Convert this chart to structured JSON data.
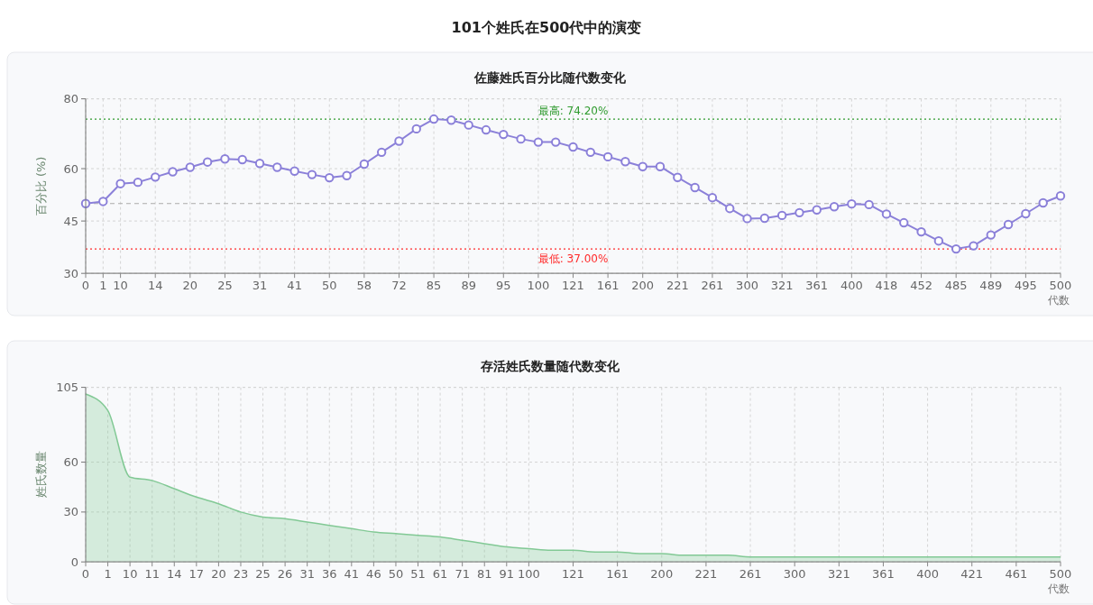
{
  "chart_data": [
    {
      "type": "line",
      "title": "101个姓氏在500代中的演变",
      "subtitle": "佐藤姓氏百分比随代数变化",
      "ylabel": "百分比 (%)",
      "xlabel": "代数",
      "categories": [
        "0",
        "1",
        "10",
        null,
        "14",
        null,
        "20",
        null,
        "25",
        null,
        "31",
        null,
        "41",
        null,
        "50",
        null,
        "58",
        null,
        "72",
        null,
        "85",
        null,
        "89",
        null,
        "95",
        null,
        "100",
        null,
        "121",
        null,
        "161",
        null,
        "200",
        null,
        "221",
        null,
        "261",
        null,
        "300",
        null,
        "321",
        null,
        "361",
        null,
        "400",
        null,
        "418",
        null,
        "452",
        null,
        "485",
        null,
        "489",
        null,
        "495",
        null,
        "500"
      ],
      "series": [
        {
          "color": "#8b80d9",
          "values": [
            50.0,
            50.6,
            55.7,
            56.1,
            57.6,
            59.1,
            60.4,
            61.9,
            62.8,
            62.6,
            61.5,
            60.4,
            59.3,
            58.3,
            57.4,
            58.0,
            61.3,
            64.7,
            67.9,
            71.4,
            74.2,
            73.9,
            72.5,
            71.1,
            69.8,
            68.5,
            67.6,
            67.6,
            66.2,
            64.7,
            63.4,
            62.0,
            60.6,
            60.6,
            57.5,
            54.6,
            51.7,
            48.6,
            45.7,
            45.8,
            46.6,
            47.4,
            48.2,
            49.1,
            49.9,
            49.7,
            47.0,
            44.5,
            41.9,
            39.3,
            37.0,
            37.9,
            41.0,
            44.0,
            47.1,
            50.2,
            52.2
          ]
        }
      ],
      "ylim": [
        30,
        80
      ],
      "yticks": [
        30,
        45,
        60,
        80
      ],
      "grid": true,
      "marker": "circle",
      "ref_lines": [
        {
          "axis": "y",
          "value": 74.2,
          "label": "最高: 74.20%",
          "color": "#2e9a2e",
          "line_style": "dotted"
        },
        {
          "axis": "y",
          "value": 37,
          "label": "最低: 37.00%",
          "color": "#ff2a2a",
          "line_style": "dotted"
        },
        {
          "axis": "y",
          "value": 50,
          "color": "#aaaaaa",
          "line_style": "dashed"
        }
      ]
    },
    {
      "type": "area",
      "title": "存活姓氏数量随代数变化",
      "ylabel": "姓氏数量",
      "xlabel": "代数",
      "categories": [
        "0",
        "1",
        "10",
        "11",
        "14",
        "17",
        "20",
        "23",
        "25",
        "26",
        "31",
        "36",
        "41",
        "46",
        "50",
        "51",
        "61",
        "71",
        "81",
        "91",
        "100",
        null,
        "121",
        null,
        "161",
        null,
        "200",
        null,
        "221",
        null,
        "261",
        null,
        "300",
        null,
        "321",
        null,
        "361",
        null,
        "400",
        null,
        "421",
        null,
        "461",
        null,
        "500"
      ],
      "series": [
        {
          "color": "#82c995",
          "values": [
            101,
            91,
            51,
            49,
            44,
            39,
            35,
            30,
            27,
            26,
            24,
            22,
            20,
            18,
            17,
            16,
            15,
            13,
            11,
            9,
            8,
            7,
            7,
            6,
            6,
            5,
            5,
            4,
            4,
            4,
            3,
            3,
            3,
            3,
            3,
            3,
            3,
            3,
            3,
            3,
            3,
            3,
            3,
            3,
            3
          ]
        }
      ],
      "ylim": [
        0,
        105
      ],
      "yticks": [
        0,
        30,
        60,
        105
      ],
      "grid": true
    }
  ]
}
